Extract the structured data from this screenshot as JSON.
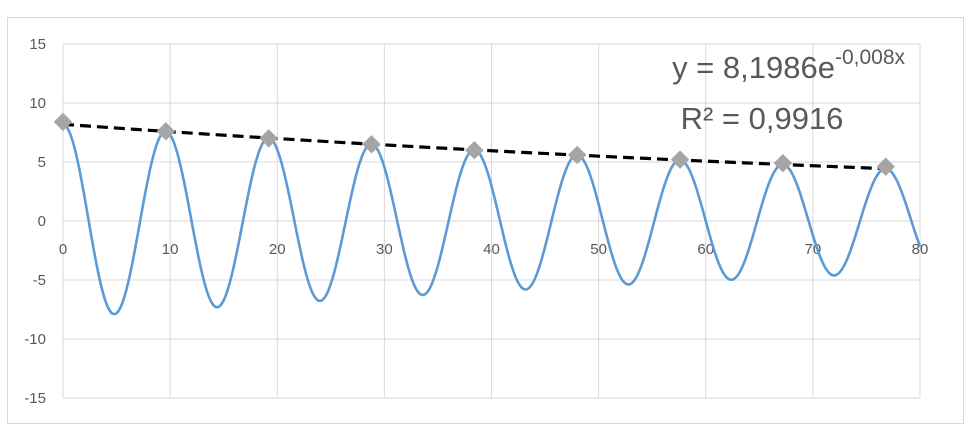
{
  "chart_data": {
    "type": "scatter",
    "title": "",
    "xlabel": "",
    "ylabel": "",
    "xlim": [
      0,
      80
    ],
    "ylim": [
      -15,
      15
    ],
    "x_ticks": [
      "0",
      "10",
      "20",
      "30",
      "40",
      "50",
      "60",
      "70",
      "80"
    ],
    "y_ticks": [
      "15",
      "10",
      "5",
      "0",
      "-5",
      "-10",
      "-15"
    ],
    "grid": true,
    "series": [
      {
        "style": "line",
        "color": "#5b9bd5",
        "function": "y = 8.2 * exp(-0.008 x) * cos(2π x / 9.6)",
        "x_range": [
          0,
          80
        ],
        "troughs": [
          [
            4.8,
            -8.0
          ],
          [
            14.4,
            -7.3
          ],
          [
            24.0,
            -6.7
          ],
          [
            33.6,
            -6.2
          ],
          [
            43.2,
            -5.8
          ],
          [
            52.8,
            -5.3
          ],
          [
            62.4,
            -5.0
          ],
          [
            72.0,
            -4.8
          ]
        ]
      },
      {
        "style": "markers",
        "color": "#a5a5a5",
        "points": [
          [
            0,
            8.4
          ],
          [
            9.6,
            7.6
          ],
          [
            19.2,
            7.0
          ],
          [
            28.8,
            6.5
          ],
          [
            38.4,
            6.0
          ],
          [
            48.0,
            5.6
          ],
          [
            57.6,
            5.2
          ],
          [
            67.2,
            4.9
          ],
          [
            76.8,
            4.6
          ]
        ]
      },
      {
        "style": "trendline",
        "color": "#000000",
        "dash": true,
        "function": "y = 8.1986 * exp(-0.008 x)",
        "x_range": [
          0,
          77
        ]
      }
    ],
    "annotation": {
      "equation_base": "y = 8,1986e",
      "equation_exponent": "-0,008x",
      "r_squared": "R² = 0,9916"
    }
  }
}
